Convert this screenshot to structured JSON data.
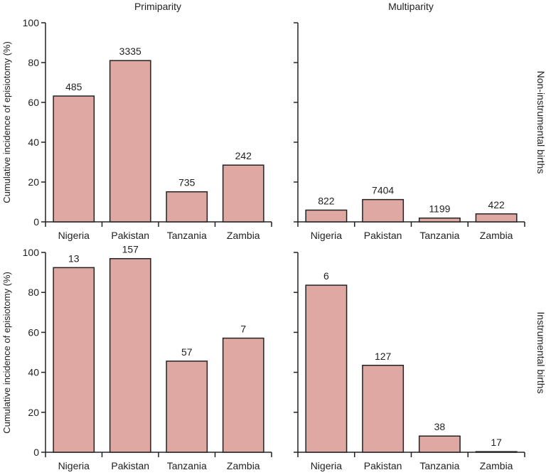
{
  "chart_data": [
    {
      "type": "bar",
      "column_title": "Primiparity",
      "row_label": "Non-instrumental births",
      "ylabel": "Cumulative incidence of episiotomy (%)",
      "ylim": [
        0,
        100
      ],
      "yticks": [
        0,
        20,
        40,
        60,
        80,
        100
      ],
      "categories": [
        "Nigeria",
        "Pakistan",
        "Tanzania",
        "Zambia"
      ],
      "values": [
        63.2,
        81,
        15.1,
        28.5
      ],
      "data_labels": [
        "485",
        "3335",
        "735",
        "242"
      ]
    },
    {
      "type": "bar",
      "column_title": "Multiparity",
      "row_label": "Non-instrumental births",
      "ylim": [
        0,
        100
      ],
      "yticks": [
        0,
        20,
        40,
        60,
        80,
        100
      ],
      "categories": [
        "Nigeria",
        "Pakistan",
        "Tanzania",
        "Zambia"
      ],
      "values": [
        5.9,
        11.2,
        1.9,
        4.0
      ],
      "data_labels": [
        "822",
        "7404",
        "1199",
        "422"
      ]
    },
    {
      "type": "bar",
      "column_title": "Primiparity",
      "row_label": "Instrumental births",
      "ylabel": "Cumulative incidence of episiotomy (%)",
      "ylim": [
        0,
        100
      ],
      "yticks": [
        0,
        20,
        40,
        60,
        80,
        100
      ],
      "categories": [
        "Nigeria",
        "Pakistan",
        "Tanzania",
        "Zambia"
      ],
      "values": [
        92.4,
        96.9,
        45.6,
        57.1
      ],
      "data_labels": [
        "13",
        "157",
        "57",
        "7"
      ]
    },
    {
      "type": "bar",
      "column_title": "Multiparity",
      "row_label": "Instrumental births",
      "ylim": [
        0,
        100
      ],
      "yticks": [
        0,
        20,
        40,
        60,
        80,
        100
      ],
      "categories": [
        "Nigeria",
        "Pakistan",
        "Tanzania",
        "Zambia"
      ],
      "values": [
        83.6,
        43.5,
        8.1,
        0.3
      ],
      "data_labels": [
        "6",
        "127",
        "38",
        "17"
      ]
    }
  ],
  "titles": {
    "col1": "Primiparity",
    "col2": "Multiparity",
    "row1": "Non-instrumental births",
    "row2": "Instrumental births",
    "ylabel": "Cumulative incidence of episiotomy (%)"
  },
  "colors": {
    "bar_fill": "#e0a8a3",
    "bar_stroke": "#222222",
    "axis": "#222222"
  }
}
